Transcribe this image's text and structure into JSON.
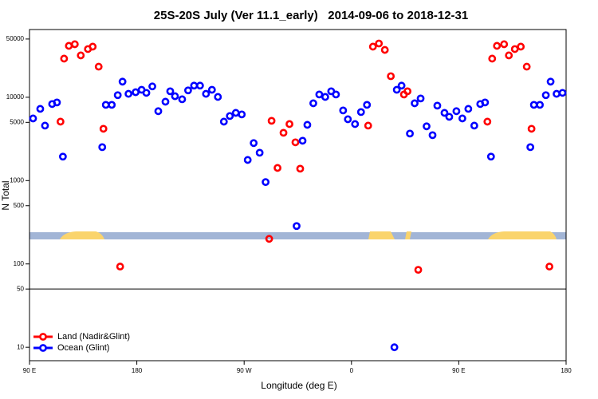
{
  "chart_data": {
    "type": "scatter",
    "title": "25S-20S July (Ver 11.1_early)   2014-09-06 to 2018-12-31",
    "xlabel": "Longitude (deg E)",
    "ylabel": "N Total",
    "xlim": [
      90,
      540
    ],
    "ylim": [
      6.9,
      65000
    ],
    "yscale": "log",
    "xticks": [
      {
        "value": 90,
        "label": "90 E"
      },
      180,
      {
        "value": 270,
        "label": "90 W"
      },
      {
        "value": 360,
        "label": "0"
      },
      {
        "value": 450,
        "label": "90 E"
      },
      {
        "value": 540,
        "label": "180"
      }
    ],
    "yticks": [
      50000,
      10000,
      5000,
      1000,
      500,
      100,
      50,
      10
    ],
    "hline": 50,
    "legend": "bottom left",
    "series": [
      {
        "name": "Land (Nadir&Glint)",
        "color": "#ff0000",
        "x": [
          116,
          119,
          123,
          128,
          133,
          139,
          143,
          148,
          152,
          166,
          291,
          293,
          298,
          303,
          308,
          313,
          317,
          374,
          378,
          383,
          388,
          393,
          404,
          407,
          416,
          474,
          478,
          482,
          488,
          492,
          497,
          502,
          507,
          511,
          526
        ],
        "values": [
          5100,
          29100,
          41400,
          43300,
          31800,
          37900,
          40500,
          23300,
          4190,
          93,
          200,
          5220,
          1420,
          3750,
          4770,
          2880,
          1390,
          4570,
          40500,
          44200,
          37000,
          17900,
          10800,
          11800,
          85,
          5100,
          29100,
          41400,
          43300,
          31800,
          37900,
          40500,
          23300,
          4190,
          93
        ]
      },
      {
        "name": "Ocean (Glint)",
        "color": "#0000ff",
        "x": [
          93,
          99,
          103,
          109,
          113,
          118,
          151,
          154,
          159,
          164,
          168,
          173,
          179,
          184,
          188,
          193,
          198,
          204,
          208,
          212,
          218,
          223,
          228,
          233,
          238,
          243,
          248,
          253,
          258,
          263,
          268,
          273,
          278,
          283,
          288,
          314,
          319,
          323,
          328,
          333,
          338,
          343,
          347,
          353,
          357,
          363,
          368,
          373,
          396,
          398,
          402,
          409,
          413,
          418,
          423,
          428,
          432,
          438,
          442,
          448,
          453,
          458,
          463,
          468,
          472,
          477,
          510,
          513,
          518,
          523,
          527,
          532,
          537
        ],
        "values": [
          5570,
          7260,
          4570,
          8300,
          8670,
          1940,
          2520,
          8110,
          8110,
          10600,
          15400,
          11000,
          11500,
          12300,
          11300,
          13500,
          6810,
          8850,
          11800,
          10300,
          9460,
          12100,
          13800,
          13800,
          11000,
          12300,
          10100,
          5100,
          5960,
          6500,
          6230,
          1770,
          2820,
          2160,
          960,
          285,
          3010,
          4670,
          8470,
          10800,
          10100,
          11800,
          10800,
          6950,
          5450,
          4770,
          6650,
          8110,
          10,
          12300,
          13800,
          3670,
          8470,
          9680,
          4480,
          3510,
          7940,
          6500,
          5830,
          6810,
          5570,
          7260,
          4570,
          8300,
          8670,
          1940,
          2520,
          8110,
          8110,
          10600,
          15400,
          11000,
          11300
        ]
      }
    ]
  }
}
